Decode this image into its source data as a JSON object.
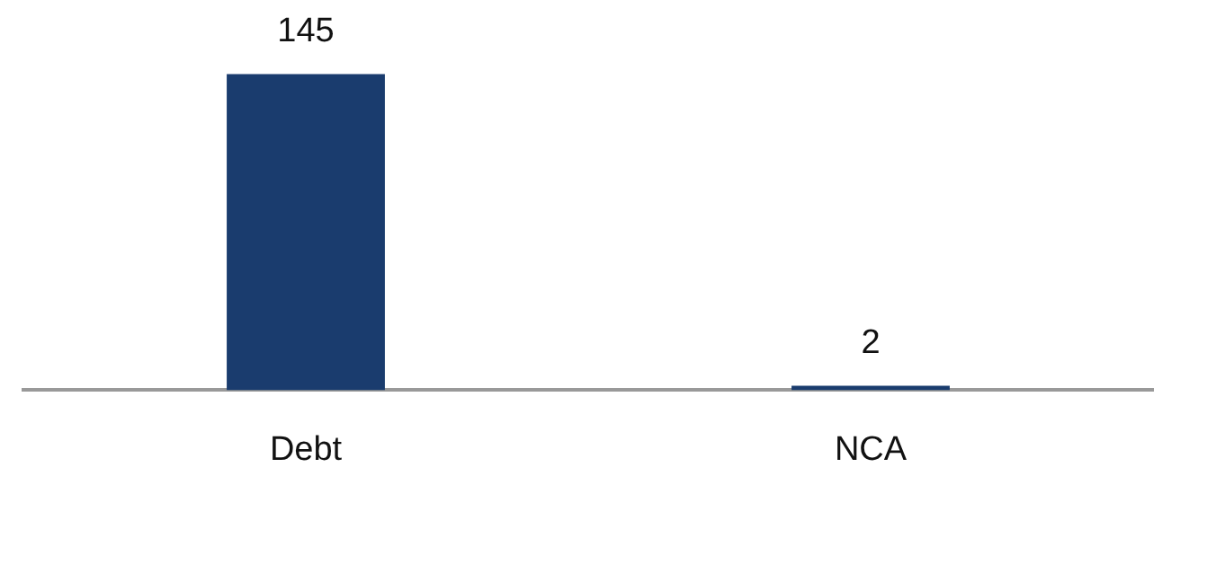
{
  "chart_data": {
    "type": "bar",
    "categories": [
      "Debt",
      "NCA"
    ],
    "values": [
      145,
      2
    ],
    "color": "#1a3c6e",
    "data_labels": true,
    "grid": false,
    "legend": false
  }
}
